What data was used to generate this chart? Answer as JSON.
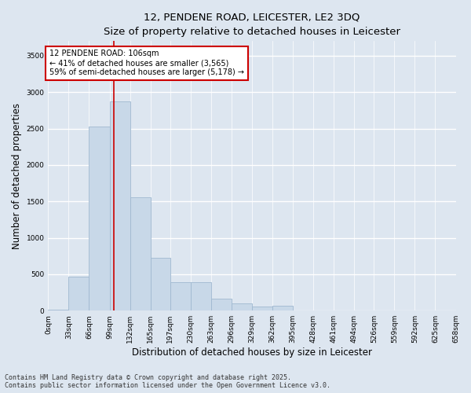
{
  "title_line1": "12, PENDENE ROAD, LEICESTER, LE2 3DQ",
  "title_line2": "Size of property relative to detached houses in Leicester",
  "xlabel": "Distribution of detached houses by size in Leicester",
  "ylabel": "Number of detached properties",
  "bar_color": "#c8d8e8",
  "bar_edge_color": "#a0b8d0",
  "background_color": "#dde6f0",
  "grid_color": "#ffffff",
  "vline_color": "#cc0000",
  "vline_x": 106,
  "annotation_text": "12 PENDENE ROAD: 106sqm\n← 41% of detached houses are smaller (3,565)\n59% of semi-detached houses are larger (5,178) →",
  "annotation_box_color": "#ffffff",
  "annotation_border_color": "#cc0000",
  "bin_edges": [
    0,
    33,
    66,
    99,
    132,
    165,
    197,
    230,
    263,
    296,
    329,
    362,
    395,
    428,
    461,
    494,
    526,
    559,
    592,
    625,
    658
  ],
  "bar_heights": [
    15,
    470,
    2530,
    2870,
    1555,
    730,
    395,
    395,
    165,
    100,
    55,
    65,
    5,
    5,
    5,
    5,
    5,
    5,
    5,
    5
  ],
  "ylim": [
    0,
    3700
  ],
  "yticks": [
    0,
    500,
    1000,
    1500,
    2000,
    2500,
    3000,
    3500
  ],
  "tick_labels": [
    "0sqm",
    "33sqm",
    "66sqm",
    "99sqm",
    "132sqm",
    "165sqm",
    "197sqm",
    "230sqm",
    "263sqm",
    "296sqm",
    "329sqm",
    "362sqm",
    "395sqm",
    "428sqm",
    "461sqm",
    "494sqm",
    "526sqm",
    "559sqm",
    "592sqm",
    "625sqm",
    "658sqm"
  ],
  "figsize": [
    6.0,
    5.0
  ],
  "dpi": 100,
  "footer_text": "Contains HM Land Registry data © Crown copyright and database right 2025.\nContains public sector information licensed under the Open Government Licence v3.0."
}
